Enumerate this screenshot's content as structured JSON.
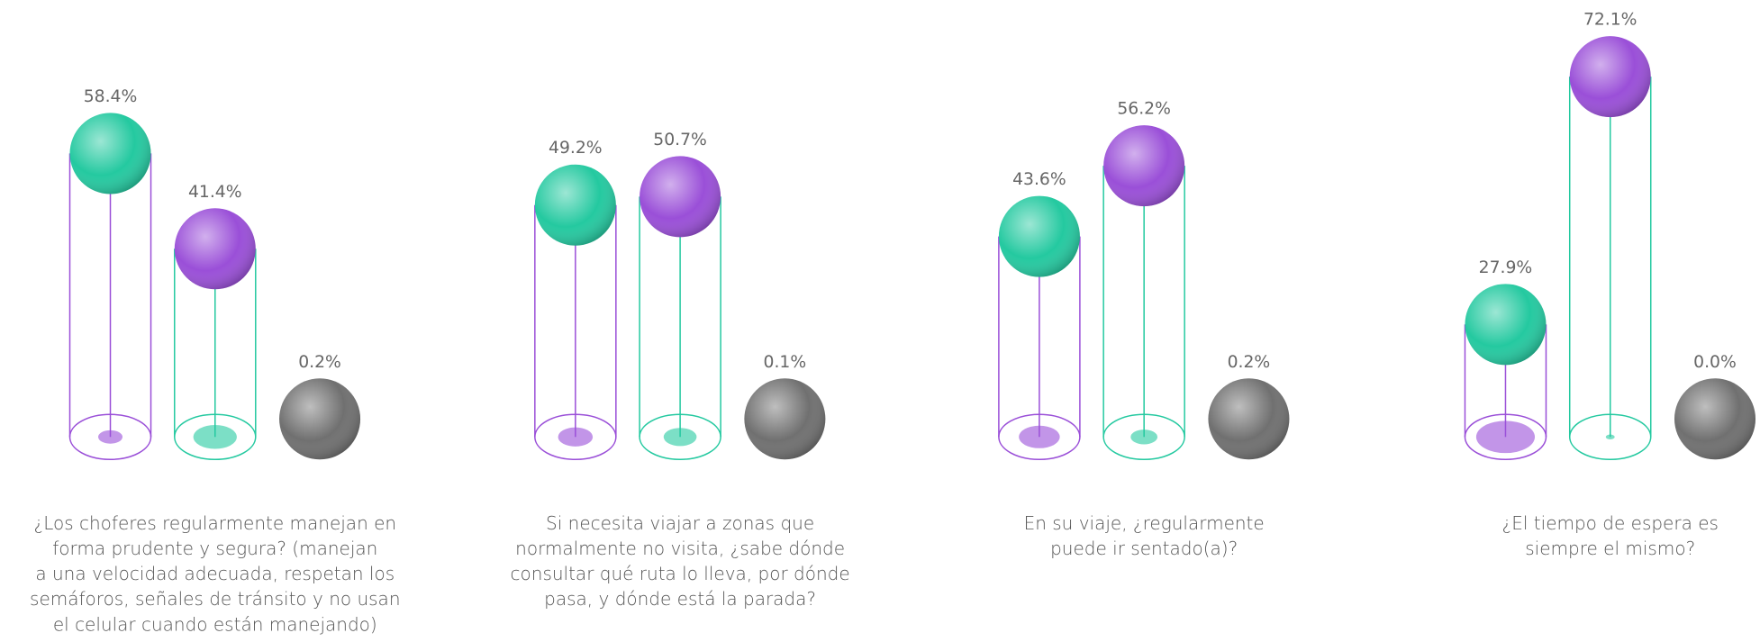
{
  "chart_data": [
    {
      "type": "sphere",
      "title_lines": [
        "¿Los choferes regularmente manejan en",
        "forma prudente y segura? (manejan",
        "a una velocidad adecuada, respetan los",
        "semáforos, señales de tránsito y no usan",
        "el celular cuando están manejando)"
      ],
      "values": [
        58.4,
        41.4,
        0.2
      ],
      "value_labels": [
        "58.4%",
        "41.4%",
        "0.2%"
      ],
      "colors": [
        "#24c9a0",
        "#9a4fd8",
        "#707070"
      ]
    },
    {
      "type": "sphere",
      "title_lines": [
        "Si necesita viajar a zonas que",
        "normalmente no visita, ¿sabe dónde",
        "consultar qué ruta lo lleva, por dónde",
        "pasa, y dónde está la parada?"
      ],
      "values": [
        49.2,
        50.7,
        0.1
      ],
      "value_labels": [
        "49.2%",
        "50.7%",
        "0.1%"
      ],
      "colors": [
        "#24c9a0",
        "#9a4fd8",
        "#707070"
      ]
    },
    {
      "type": "sphere",
      "title_lines": [
        "En su viaje, ¿regularmente",
        "puede ir sentado(a)?"
      ],
      "values": [
        43.6,
        56.2,
        0.2
      ],
      "value_labels": [
        "43.6%",
        "56.2%",
        "0.2%"
      ],
      "colors": [
        "#24c9a0",
        "#9a4fd8",
        "#707070"
      ]
    },
    {
      "type": "sphere",
      "title_lines": [
        "¿El tiempo de espera es",
        "siempre el mismo?"
      ],
      "values": [
        27.9,
        72.1,
        0.0
      ],
      "value_labels": [
        "27.9%",
        "72.1%",
        "0.0%"
      ],
      "colors": [
        "#24c9a0",
        "#9a4fd8",
        "#707070"
      ]
    }
  ]
}
